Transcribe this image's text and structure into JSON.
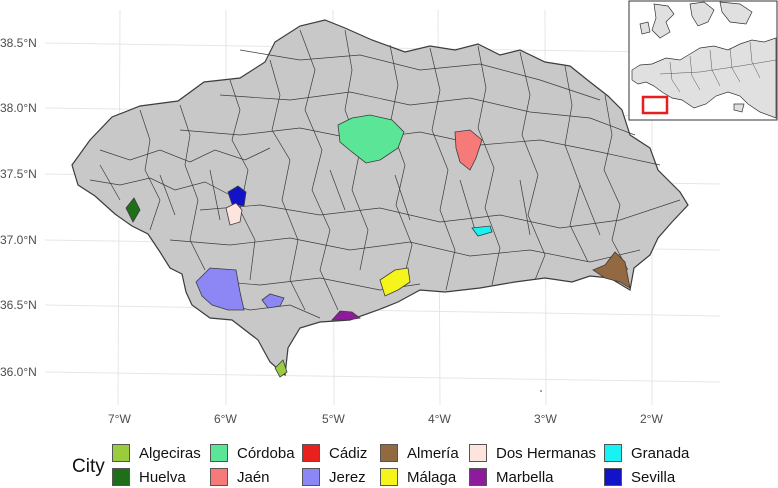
{
  "map": {
    "lat_labels": [
      "38.5°N",
      "38.0°N",
      "37.5°N",
      "37.0°N",
      "36.5°N",
      "36.0°N"
    ],
    "lon_labels": [
      "7°W",
      "6°W",
      "5°W",
      "4°W",
      "3°W",
      "2°W"
    ],
    "region_fill": "#c8c8c8",
    "border_color": "#3c3c3c"
  },
  "legend": {
    "title": "City",
    "items": [
      {
        "label": "Algeciras",
        "color": "#9acd3e"
      },
      {
        "label": "Córdoba",
        "color": "#5be597"
      },
      {
        "label": "Cádiz",
        "color": "#e8201e"
      },
      {
        "label": "Almería",
        "color": "#936942"
      },
      {
        "label": "Dos Hermanas",
        "color": "#fde4dc"
      },
      {
        "label": "Granada",
        "color": "#17f2f2"
      },
      {
        "label": "Huelva",
        "color": "#1f6e1a"
      },
      {
        "label": "Jaén",
        "color": "#f57a78"
      },
      {
        "label": "Jerez",
        "color": "#8c87f5"
      },
      {
        "label": "Málaga",
        "color": "#f5f51c"
      },
      {
        "label": "Marbella",
        "color": "#8e1b9b"
      },
      {
        "label": "Sevilla",
        "color": "#1212c8"
      }
    ]
  },
  "inset": {
    "frame_color": "#e81e1e"
  }
}
